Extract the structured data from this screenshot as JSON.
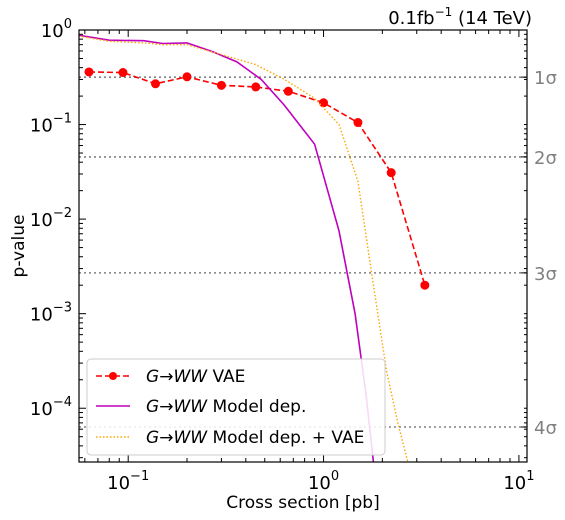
{
  "chart_data": {
    "type": "line",
    "title": "",
    "annotation": {
      "lumi_value": "0.1fb",
      "lumi_exp": "−1",
      "lumi_rest": " (14 TeV)"
    },
    "xlabel": "Cross section [pb]",
    "ylabel": "p-value",
    "xscale": "log",
    "yscale": "log",
    "xlim": [
      0.056,
      11.0
    ],
    "ylim": [
      2.7e-05,
      1.0
    ],
    "x_major_ticks": [
      {
        "value": 0.1,
        "base": "10",
        "exp": "−1"
      },
      {
        "value": 1,
        "base": "10",
        "exp": "0"
      },
      {
        "value": 10,
        "base": "10",
        "exp": "1"
      }
    ],
    "y_major_ticks": [
      {
        "value": 1,
        "base": "10",
        "exp": "0"
      },
      {
        "value": 0.1,
        "base": "10",
        "exp": "−1"
      },
      {
        "value": 0.01,
        "base": "10",
        "exp": "−2"
      },
      {
        "value": 0.001,
        "base": "10",
        "exp": "−3"
      },
      {
        "value": 0.0001,
        "base": "10",
        "exp": "−4"
      }
    ],
    "sigma_lines": [
      {
        "label": "1σ",
        "p": 0.3173
      },
      {
        "label": "2σ",
        "p": 0.0455
      },
      {
        "label": "3σ",
        "p": 0.0027
      },
      {
        "label": "4σ",
        "p": 6.33e-05
      }
    ],
    "grid": false,
    "legend_position": "bottom-left",
    "series": [
      {
        "name": "VAE",
        "legend_prefix": "G→WW",
        "legend_suffix": " VAE",
        "color": "#ff0000",
        "style": "dashed-markers",
        "x": [
          0.063,
          0.094,
          0.138,
          0.2,
          0.3,
          0.45,
          0.66,
          1.0,
          1.5,
          2.22,
          3.3
        ],
        "y": [
          0.36,
          0.355,
          0.27,
          0.32,
          0.26,
          0.25,
          0.225,
          0.17,
          0.105,
          0.031,
          0.002
        ]
      },
      {
        "name": "Model dep.",
        "legend_prefix": "G→WW",
        "legend_suffix": " Model dep.",
        "color": "#bf00bf",
        "style": "solid",
        "x": [
          0.056,
          0.08,
          0.12,
          0.15,
          0.2,
          0.27,
          0.36,
          0.48,
          0.63,
          0.9,
          1.2,
          1.45,
          1.65,
          1.8
        ],
        "y": [
          0.88,
          0.78,
          0.77,
          0.72,
          0.73,
          0.59,
          0.46,
          0.3,
          0.16,
          0.062,
          0.0075,
          0.001,
          0.00014,
          2.7e-05
        ]
      },
      {
        "name": "Model dep. + VAE",
        "legend_prefix": "G→WW",
        "legend_suffix": " Model dep. + VAE",
        "color": "#ffa500",
        "style": "dotted",
        "x": [
          0.056,
          0.08,
          0.12,
          0.15,
          0.2,
          0.3,
          0.45,
          0.63,
          0.9,
          1.2,
          1.5,
          1.8,
          2.1,
          2.4,
          2.7
        ],
        "y": [
          0.86,
          0.76,
          0.73,
          0.7,
          0.7,
          0.55,
          0.43,
          0.3,
          0.19,
          0.1,
          0.025,
          0.002,
          0.00025,
          7e-05,
          2.7e-05
        ]
      }
    ]
  }
}
